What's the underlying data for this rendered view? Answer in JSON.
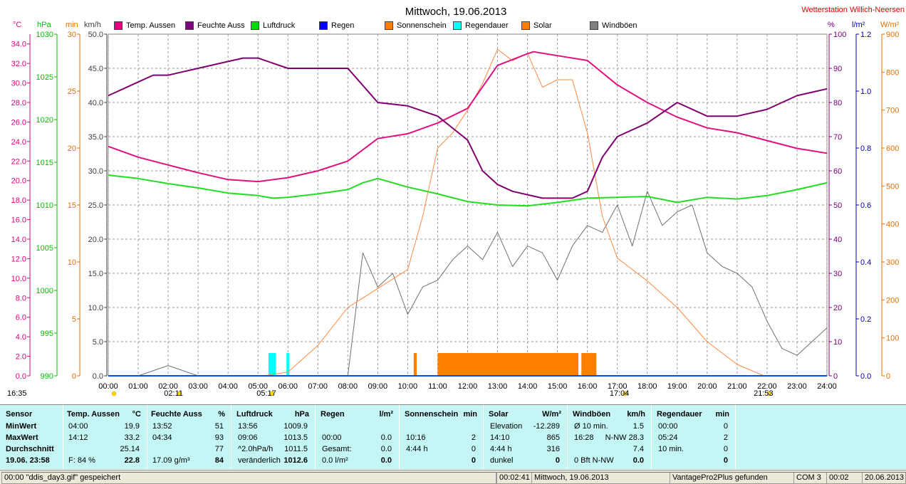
{
  "chart_data": {
    "type": "line",
    "title": "Mittwoch, 19.06.2013",
    "station": "Wetterstation Willich-Neersen",
    "x_ticks": [
      "00:00",
      "01:00",
      "02:00",
      "03:00",
      "04:00",
      "05:00",
      "06:00",
      "07:00",
      "08:00",
      "09:00",
      "10:00",
      "11:00",
      "12:00",
      "13:00",
      "14:00",
      "15:00",
      "16:00",
      "17:00",
      "18:00",
      "19:00",
      "20:00",
      "21:00",
      "22:00",
      "23:00",
      "24:00"
    ],
    "left_axes": [
      {
        "unit": "°C",
        "color": "#e0007f",
        "ticks": [
          "34.0",
          "32.0",
          "30.0",
          "28.0",
          "26.0",
          "24.0",
          "22.0",
          "20.0",
          "18.0",
          "16.0",
          "14.0",
          "12.0",
          "10.0",
          "8.0",
          "6.0",
          "4.0",
          "2.0",
          "0.0"
        ],
        "range": [
          0,
          35
        ]
      },
      {
        "unit": "hPa",
        "color": "#00c000",
        "ticks": [
          "1030",
          "1025",
          "1020",
          "1015",
          "1010",
          "1005",
          "1000",
          "995",
          "990"
        ],
        "range": [
          990,
          1030
        ]
      },
      {
        "unit": "min",
        "color": "#e07000",
        "ticks": [
          "30",
          "25",
          "20",
          "15",
          "10",
          "5",
          "0"
        ],
        "range": [
          0,
          30
        ]
      },
      {
        "unit": "km/h",
        "color": "#404040",
        "ticks": [
          "50.0",
          "45.0",
          "40.0",
          "35.0",
          "30.0",
          "25.0",
          "20.0",
          "15.0",
          "10.0",
          "5.0",
          "0.0"
        ],
        "range": [
          0,
          50
        ]
      }
    ],
    "right_axes": [
      {
        "unit": "%",
        "color": "#800080",
        "ticks": [
          "100",
          "90",
          "80",
          "70",
          "60",
          "50",
          "40",
          "30",
          "20",
          "10",
          "0"
        ],
        "range": [
          0,
          100
        ]
      },
      {
        "unit": "l/m²",
        "color": "#0000c0",
        "ticks": [
          "1.2",
          "1.0",
          "0.8",
          "0.6",
          "0.4",
          "0.2",
          "0.0"
        ],
        "range": [
          0,
          1.2
        ]
      },
      {
        "unit": "W/m²",
        "color": "#e07000",
        "ticks": [
          "900",
          "800",
          "700",
          "600",
          "500",
          "400",
          "300",
          "200",
          "100",
          "0"
        ],
        "range": [
          0,
          900
        ]
      }
    ],
    "legend": [
      {
        "name": "Temp. Aussen",
        "color": "#e0007f"
      },
      {
        "name": "Feuchte Auss",
        "color": "#800080"
      },
      {
        "name": "Luftdruck",
        "color": "#00dd00"
      },
      {
        "name": "Regen",
        "color": "#0000ff"
      },
      {
        "name": "Sonnenschein",
        "color": "#ff8000"
      },
      {
        "name": "Regendauer",
        "color": "#00ffff"
      },
      {
        "name": "Solar",
        "color": "#ff8000"
      },
      {
        "name": "Windböen",
        "color": "#808080"
      }
    ],
    "series": [
      {
        "name": "Temp. Aussen",
        "axis": "°C",
        "x": [
          0,
          1,
          2,
          3,
          4,
          5,
          6,
          7,
          8,
          9,
          10,
          11,
          12,
          13,
          14,
          14.2,
          15,
          16,
          17,
          18,
          19,
          20,
          21,
          22,
          23,
          24
        ],
        "values": [
          23.5,
          22.4,
          21.6,
          20.8,
          20.1,
          19.9,
          20.3,
          21.0,
          22.0,
          24.3,
          24.8,
          25.9,
          27.4,
          31.8,
          33.0,
          33.2,
          32.8,
          32.3,
          29.8,
          28.0,
          26.5,
          25.4,
          24.9,
          24.1,
          23.3,
          22.8
        ]
      },
      {
        "name": "Feuchte Auss",
        "axis": "%",
        "x": [
          0,
          0.5,
          1,
          1.5,
          2,
          3,
          4,
          4.5,
          5,
          6,
          7,
          8,
          8.5,
          9,
          10,
          11,
          12,
          12.5,
          13,
          13.5,
          14,
          14.5,
          15,
          15.5,
          16,
          16.5,
          17,
          17.5,
          18,
          19,
          20,
          21,
          22,
          23,
          24
        ],
        "values": [
          82,
          84,
          86,
          88,
          88,
          90,
          92,
          93,
          93,
          90,
          90,
          90,
          85,
          80,
          79,
          76,
          69,
          60,
          56,
          54,
          53,
          52,
          52,
          52,
          54,
          64,
          70,
          72,
          74,
          80,
          76,
          76,
          78,
          82,
          84
        ]
      },
      {
        "name": "Luftdruck",
        "axis": "hPa",
        "x": [
          0,
          1,
          2,
          3,
          4,
          5,
          5.5,
          6,
          7,
          8,
          8.5,
          9,
          10,
          11,
          12,
          13,
          14,
          15,
          16,
          17,
          18,
          19,
          20,
          21,
          22,
          23,
          24
        ],
        "values": [
          1013.5,
          1013.1,
          1012.5,
          1012.0,
          1011.4,
          1011.1,
          1010.8,
          1010.9,
          1011.3,
          1011.8,
          1012.6,
          1013.1,
          1012.1,
          1011.3,
          1010.4,
          1010.0,
          1009.9,
          1010.3,
          1010.8,
          1010.9,
          1011.0,
          1010.3,
          1010.9,
          1010.7,
          1011.1,
          1011.8,
          1012.6
        ]
      },
      {
        "name": "Solar",
        "axis": "W/m²",
        "x": [
          0,
          5.2,
          6,
          7,
          8,
          9,
          10,
          10.5,
          11,
          11.5,
          12,
          12.5,
          13,
          13.5,
          14,
          14.5,
          15,
          15.5,
          16,
          16.5,
          17,
          18,
          19,
          20,
          21,
          21.9,
          24
        ],
        "values": [
          0,
          0,
          10,
          80,
          180,
          230,
          280,
          420,
          600,
          640,
          700,
          770,
          860,
          830,
          850,
          760,
          780,
          780,
          640,
          420,
          310,
          250,
          180,
          90,
          30,
          0,
          0
        ]
      },
      {
        "name": "Windböen",
        "axis": "km/h",
        "x": [
          0,
          1,
          2,
          3,
          4,
          5,
          6,
          7,
          8,
          8.5,
          9,
          9.5,
          10,
          10.5,
          11,
          11.5,
          12,
          12.5,
          13,
          13.5,
          14,
          14.5,
          15,
          15.5,
          16,
          16.5,
          17,
          17.5,
          18,
          18.5,
          19,
          19.5,
          20,
          20.5,
          21,
          21.5,
          22,
          22.5,
          23,
          23.5,
          24
        ],
        "values": [
          0,
          0,
          1.5,
          0,
          0,
          0,
          0,
          0,
          0,
          18,
          13,
          15,
          9,
          13,
          14,
          17,
          19,
          17,
          21,
          16,
          19,
          18,
          14,
          19,
          22,
          21,
          25,
          19,
          27,
          22,
          24,
          25,
          18,
          16,
          15,
          13,
          8,
          4,
          3,
          5,
          7
        ]
      },
      {
        "name": "Sonnenschein",
        "axis": "min",
        "type": "bar",
        "segments": [
          [
            10.2,
            10.3
          ],
          [
            11.0,
            15.7
          ],
          [
            15.8,
            16.3
          ]
        ],
        "value": 2
      },
      {
        "name": "Regendauer",
        "axis": "min",
        "type": "bar",
        "segments": [
          [
            5.35,
            5.6
          ],
          [
            5.95,
            6.05
          ]
        ],
        "value": 2
      },
      {
        "name": "Regen",
        "axis": "l/m²",
        "x": [
          0,
          24
        ],
        "values": [
          0,
          0
        ]
      }
    ],
    "time_markers": [
      {
        "label": "16:35",
        "x": 0
      },
      {
        "label": "02:11",
        "x": 2.18
      },
      {
        "label": "05:17",
        "x": 5.28
      },
      {
        "label": "17:04",
        "x": 17.07
      },
      {
        "label": "21:53",
        "x": 21.88
      }
    ]
  },
  "table": {
    "sensor": {
      "header": "Sensor",
      "rows": [
        "MinWert",
        "MaxWert",
        "Durchschnitt",
        "19.06.  23:58"
      ]
    },
    "temp": {
      "header": "Temp. Aussen",
      "unit": "°C",
      "rows": [
        [
          "04:00",
          "19.9"
        ],
        [
          "14:12",
          "33.2"
        ],
        [
          "",
          "25.14"
        ],
        [
          "F: 84 %",
          "22.8"
        ]
      ]
    },
    "feuchte": {
      "header": "Feuchte Auss",
      "unit": "%",
      "rows": [
        [
          "13:52",
          "51"
        ],
        [
          "04:34",
          "93"
        ],
        [
          "",
          "77"
        ],
        [
          "17.09 g/m³",
          "84"
        ]
      ]
    },
    "luftdruck": {
      "header": "Luftdruck",
      "unit": "hPa",
      "rows": [
        [
          "13:56",
          "1009.9"
        ],
        [
          "09:06",
          "1013.5"
        ],
        [
          "^2.0hPa/h",
          "1011.5"
        ],
        [
          "veränderlich",
          "1012.6"
        ]
      ]
    },
    "regen": {
      "header": "Regen",
      "unit": "l/m²",
      "rows": [
        [
          "",
          ""
        ],
        [
          "00:00",
          "0.0"
        ],
        [
          "Gesamt:",
          "0.0"
        ],
        [
          "0.0 l/m²",
          "0.0"
        ]
      ]
    },
    "sonne": {
      "header": "Sonnenschein",
      "unit": "min",
      "rows": [
        [
          "",
          ""
        ],
        [
          "10:16",
          "2"
        ],
        [
          "4:44 h",
          "0"
        ],
        [
          "",
          "0"
        ]
      ]
    },
    "solar": {
      "header": "Solar",
      "unit": "W/m²",
      "rows": [
        [
          "Elevation",
          "-12.289"
        ],
        [
          "14:10",
          "865"
        ],
        [
          "4:44 h",
          "316"
        ],
        [
          "dunkel",
          "0"
        ]
      ]
    },
    "wind": {
      "header": "Windböen",
      "unit": "km/h",
      "rows": [
        [
          "Ø 10 min.",
          "1.5"
        ],
        [
          "16:28",
          "N-NW 28.3"
        ],
        [
          "",
          "7.4"
        ],
        [
          "0 Bft N-NW",
          "0.0"
        ]
      ]
    },
    "regendauer": {
      "header": "Regendauer",
      "unit": "min",
      "rows": [
        [
          "00:00",
          "0"
        ],
        [
          "05:24",
          "2"
        ],
        [
          "10 min.",
          "0"
        ],
        [
          "",
          "0"
        ]
      ]
    }
  },
  "status": {
    "message": "00:00  \"ddis_day3.gif\"  gespeichert",
    "time": "00:02:41",
    "date_label": "Mittwoch, 19.06.2013",
    "device": "VantagePro2Plus gefunden",
    "port": "COM 3",
    "clock": "00:02",
    "date": "20.06.2013"
  }
}
